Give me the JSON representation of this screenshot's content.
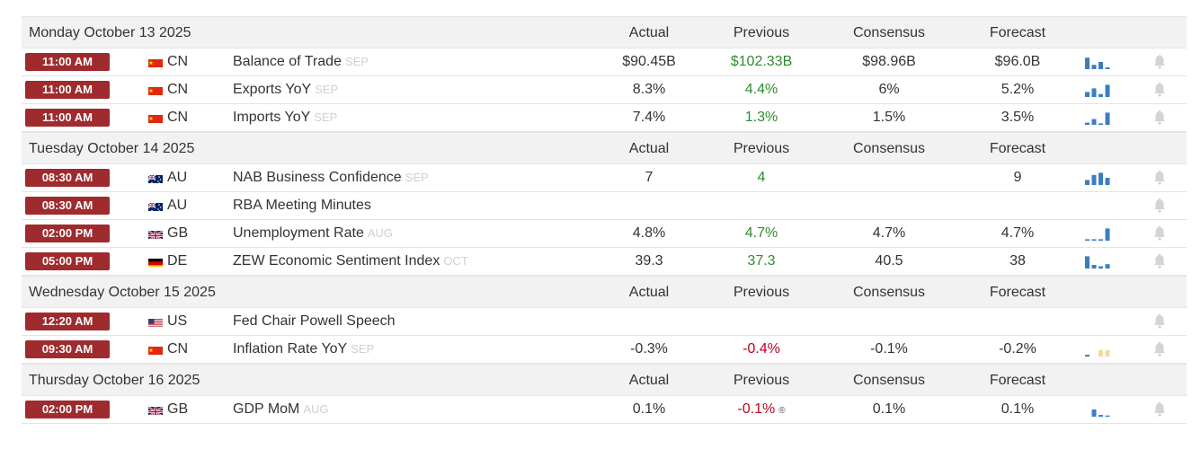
{
  "columns": {
    "actual": "Actual",
    "previous": "Previous",
    "consensus": "Consensus",
    "forecast": "Forecast"
  },
  "colors": {
    "time_badge": "#9f2b2e",
    "positive": "#2e8b2e",
    "negative": "#c0001a",
    "spark_bar": "#3d7dbf",
    "spark_bar_light": "#f5d9a0"
  },
  "days": [
    {
      "title": "Monday October 13 2025",
      "events": [
        {
          "time": "11:00 AM",
          "flag": "cn-flag-icon",
          "country": "CN",
          "name": "Balance of Trade",
          "ref": "SEP",
          "actual": "$90.45B",
          "previous": "$102.33B",
          "previous_color": "green",
          "consensus": "$98.96B",
          "forecast": "$96.0B",
          "spark": [
            80,
            30,
            50,
            12
          ],
          "spark_style": "blue"
        },
        {
          "time": "11:00 AM",
          "flag": "cn-flag-icon",
          "country": "CN",
          "name": "Exports YoY",
          "ref": "SEP",
          "actual": "8.3%",
          "previous": "4.4%",
          "previous_color": "green",
          "consensus": "6%",
          "forecast": "5.2%",
          "spark": [
            35,
            60,
            20,
            85
          ],
          "spark_style": "blue"
        },
        {
          "time": "11:00 AM",
          "flag": "cn-flag-icon",
          "country": "CN",
          "name": "Imports YoY",
          "ref": "SEP",
          "actual": "7.4%",
          "previous": "1.3%",
          "previous_color": "green",
          "consensus": "1.5%",
          "forecast": "3.5%",
          "spark": [
            15,
            40,
            10,
            85
          ],
          "spark_style": "blue"
        }
      ]
    },
    {
      "title": "Tuesday October 14 2025",
      "events": [
        {
          "time": "08:30 AM",
          "flag": "au-flag-icon",
          "country": "AU",
          "name": "NAB Business Confidence",
          "ref": "SEP",
          "actual": "7",
          "previous": "4",
          "previous_color": "green",
          "consensus": "",
          "forecast": "9",
          "spark": [
            35,
            70,
            85,
            50
          ],
          "spark_style": "blue"
        },
        {
          "time": "08:30 AM",
          "flag": "au-flag-icon",
          "country": "AU",
          "name": "RBA Meeting Minutes",
          "ref": "",
          "actual": "",
          "previous": "",
          "previous_color": "",
          "consensus": "",
          "forecast": "",
          "spark": [],
          "spark_style": ""
        },
        {
          "time": "02:00 PM",
          "flag": "gb-flag-icon",
          "country": "GB",
          "name": "Unemployment Rate",
          "ref": "AUG",
          "actual": "4.8%",
          "previous": "4.7%",
          "previous_color": "green",
          "consensus": "4.7%",
          "forecast": "4.7%",
          "spark": [
            10,
            10,
            10,
            85
          ],
          "spark_style": "blue"
        },
        {
          "time": "05:00 PM",
          "flag": "de-flag-icon",
          "country": "DE",
          "name": "ZEW Economic Sentiment Index",
          "ref": "OCT",
          "actual": "39.3",
          "previous": "37.3",
          "previous_color": "green",
          "consensus": "40.5",
          "forecast": "38",
          "spark": [
            85,
            25,
            15,
            30
          ],
          "spark_style": "blue"
        }
      ]
    },
    {
      "title": "Wednesday October 15 2025",
      "events": [
        {
          "time": "12:20 AM",
          "flag": "us-flag-icon",
          "country": "US",
          "name": "Fed Chair Powell Speech",
          "ref": "",
          "actual": "",
          "previous": "",
          "previous_color": "",
          "consensus": "",
          "forecast": "",
          "spark": [],
          "spark_style": ""
        },
        {
          "time": "09:30 AM",
          "flag": "cn-flag-icon",
          "country": "CN",
          "name": "Inflation Rate YoY",
          "ref": "SEP",
          "actual": "-0.3%",
          "previous": "-0.4%",
          "previous_color": "red",
          "consensus": "-0.1%",
          "forecast": "-0.2%",
          "spark": [
            12,
            0,
            45,
            45
          ],
          "spark_style": "mixed"
        }
      ]
    },
    {
      "title": "Thursday October 16 2025",
      "events": [
        {
          "time": "02:00 PM",
          "flag": "gb-flag-icon",
          "country": "GB",
          "name": "GDP MoM",
          "ref": "AUG",
          "actual": "0.1%",
          "previous": "-0.1%",
          "previous_color": "red",
          "previous_note": "®",
          "consensus": "0.1%",
          "forecast": "0.1%",
          "spark": [
            0,
            50,
            12,
            8
          ],
          "spark_style": "blue"
        }
      ]
    }
  ]
}
